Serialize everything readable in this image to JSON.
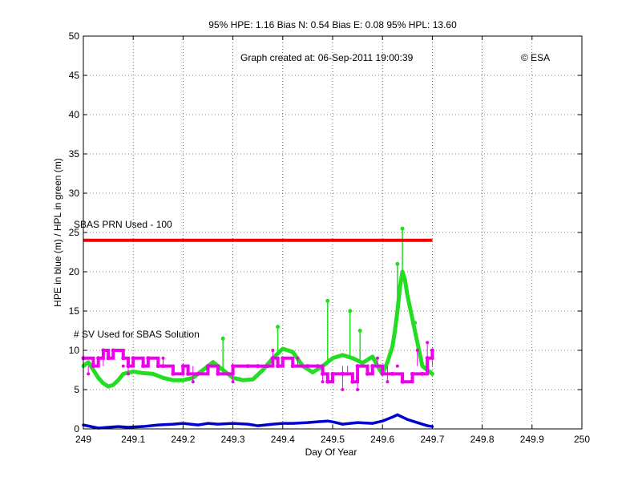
{
  "chart_data": {
    "type": "line",
    "title": "95% HPE: 1.16  Bias N: 0.54  Bias E: 0.08  95% HPL: 13.60",
    "xlabel": "Day Of Year",
    "ylabel": "HPE in blue (m) / HPL in green (m)",
    "xlim": [
      249,
      250
    ],
    "ylim": [
      0,
      50
    ],
    "grid": true,
    "x_ticks": [
      "249",
      "249.1",
      "249.2",
      "249.3",
      "249.4",
      "249.5",
      "249.6",
      "249.7",
      "249.8",
      "249.9",
      "250"
    ],
    "y_ticks": [
      "0",
      "5",
      "10",
      "15",
      "20",
      "25",
      "30",
      "35",
      "40",
      "45",
      "50"
    ],
    "annotations": {
      "created": "Graph created at: 06-Sep-2011 19:00:39",
      "copyright": "© ESA",
      "sbas_prn": "SBAS PRN Used - 100",
      "sv_used": "# SV Used for SBAS Solution"
    },
    "colors": {
      "hpe": "#0000cc",
      "hpl": "#22dd22",
      "sv": "#ee00ee",
      "prn": "#ee0000",
      "sbas_label": "#cc0000",
      "sv_label": "#cc00cc"
    },
    "series": [
      {
        "x": [
          249.0,
          249.03,
          249.05,
          249.07,
          249.09,
          249.12,
          249.15,
          249.18,
          249.2,
          249.23,
          249.25,
          249.27,
          249.3,
          249.33,
          249.35,
          249.38,
          249.4,
          249.42,
          249.45,
          249.47,
          249.49,
          249.5,
          249.52,
          249.55,
          249.58,
          249.6,
          249.62,
          249.63,
          249.64,
          249.65,
          249.67,
          249.69,
          249.7
        ],
        "y": [
          0.5,
          0.1,
          0.2,
          0.3,
          0.2,
          0.3,
          0.5,
          0.6,
          0.7,
          0.5,
          0.7,
          0.6,
          0.7,
          0.6,
          0.4,
          0.6,
          0.7,
          0.7,
          0.8,
          0.9,
          1.0,
          0.9,
          0.6,
          0.8,
          0.7,
          1.0,
          1.5,
          1.8,
          1.5,
          1.2,
          0.8,
          0.4,
          0.3
        ]
      },
      {
        "x": [
          249.0,
          249.01,
          249.02,
          249.03,
          249.04,
          249.05,
          249.06,
          249.07,
          249.08,
          249.1,
          249.12,
          249.14,
          249.16,
          249.18,
          249.2,
          249.22,
          249.24,
          249.26,
          249.28,
          249.3,
          249.32,
          249.34,
          249.36,
          249.38,
          249.4,
          249.42,
          249.44,
          249.46,
          249.48,
          249.5,
          249.52,
          249.54,
          249.56,
          249.58,
          249.59,
          249.6,
          249.61,
          249.62,
          249.625,
          249.63,
          249.635,
          249.64,
          249.645,
          249.65,
          249.66,
          249.68,
          249.7
        ],
        "y": [
          8,
          8.5,
          7.5,
          6.5,
          5.8,
          5.4,
          5.6,
          6.2,
          7.0,
          7.3,
          7.1,
          7.0,
          6.5,
          6.2,
          6.2,
          6.5,
          7.5,
          8.5,
          7.5,
          6.5,
          6.2,
          6.3,
          7.5,
          9.0,
          10.2,
          9.8,
          8.0,
          7.2,
          8.0,
          9.0,
          9.4,
          9.0,
          8.4,
          9.2,
          8.0,
          7.0,
          8.5,
          10.5,
          12.5,
          15,
          18,
          20,
          19,
          17,
          14,
          8.0,
          7.0
        ],
        "spikes": [
          [
            249.28,
            11.5
          ],
          [
            249.39,
            13.0
          ],
          [
            249.49,
            16.3
          ],
          [
            249.535,
            15.0
          ],
          [
            249.555,
            12.5
          ],
          [
            249.63,
            21.0
          ],
          [
            249.64,
            25.5
          ],
          [
            249.665,
            13.5
          ]
        ]
      },
      {
        "x": [
          249.0,
          249.02,
          249.03,
          249.04,
          249.05,
          249.06,
          249.08,
          249.09,
          249.1,
          249.12,
          249.13,
          249.15,
          249.16,
          249.18,
          249.2,
          249.21,
          249.23,
          249.25,
          249.27,
          249.3,
          249.33,
          249.35,
          249.37,
          249.38,
          249.39,
          249.4,
          249.42,
          249.45,
          249.47,
          249.48,
          249.49,
          249.5,
          249.52,
          249.54,
          249.55,
          249.57,
          249.58,
          249.6,
          249.62,
          249.64,
          249.66,
          249.68,
          249.69,
          249.7
        ],
        "y": [
          9,
          8,
          9,
          10,
          9,
          10,
          9,
          8,
          9,
          8,
          9,
          8,
          8,
          7,
          8,
          7,
          7,
          8,
          7,
          8,
          8,
          8,
          8,
          9,
          8,
          9,
          8,
          8,
          8,
          7,
          6,
          7,
          7,
          6,
          8,
          7,
          8,
          7,
          7,
          6,
          7,
          7,
          9,
          10
        ],
        "outliers": [
          [
            249.01,
            7.0
          ],
          [
            249.04,
            10.0
          ],
          [
            249.08,
            8.0
          ],
          [
            249.09,
            7.0
          ],
          [
            249.16,
            9.0
          ],
          [
            249.21,
            8.0
          ],
          [
            249.22,
            6.0
          ],
          [
            249.3,
            6.0
          ],
          [
            249.38,
            10.0
          ],
          [
            249.43,
            9.0
          ],
          [
            249.48,
            6.0
          ],
          [
            249.52,
            5.0
          ],
          [
            249.53,
            7.0
          ],
          [
            249.55,
            5.0
          ],
          [
            249.59,
            9.0
          ],
          [
            249.61,
            6.0
          ],
          [
            249.63,
            8.0
          ],
          [
            249.67,
            10.0
          ],
          [
            249.69,
            11.0
          ],
          [
            249.7,
            9.0
          ]
        ]
      },
      {
        "x": [
          249.0,
          249.7
        ],
        "y": [
          24,
          24
        ]
      }
    ]
  }
}
